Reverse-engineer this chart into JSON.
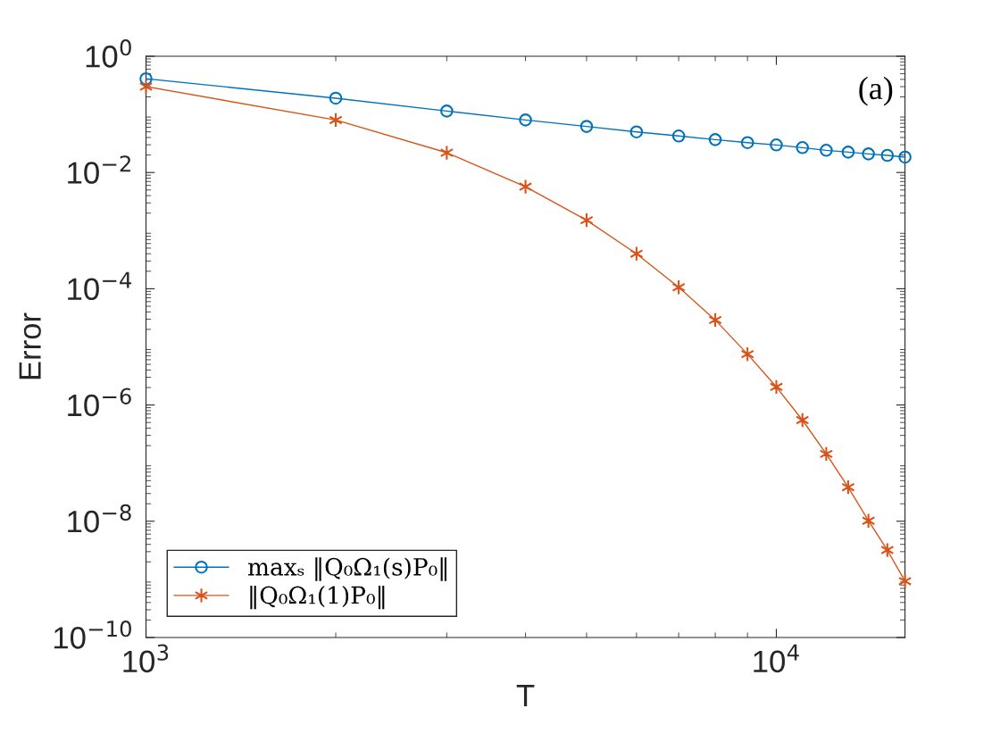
{
  "chart_data": {
    "type": "line",
    "xlabel": "T",
    "ylabel": "Error",
    "log": "xy",
    "x": [
      1000,
      2000,
      3000,
      4000,
      5000,
      6000,
      7000,
      8000,
      9000,
      10000,
      11000,
      12000,
      13000,
      14000,
      15000,
      16000
    ],
    "series": [
      {
        "name": "maxₛ ‖Q₀Ω₁(s)P₀‖",
        "color": "#0072bd",
        "marker": "circle",
        "values": [
          0.41,
          0.19,
          0.114,
          0.08,
          0.062,
          0.05,
          0.0425,
          0.0368,
          0.0327,
          0.0298,
          0.0268,
          0.0241,
          0.0224,
          0.0209,
          0.0197,
          0.0184
        ]
      },
      {
        "name": "‖Q₀Ω₁(1)P₀‖",
        "color": "#d95319",
        "marker": "cross",
        "values": [
          0.3,
          0.08,
          0.0219,
          0.0057,
          0.00151,
          0.0004,
          0.000106,
          2.9e-05,
          7.5e-06,
          2.05e-06,
          5.5e-07,
          1.44e-07,
          3.85e-08,
          1.02e-08,
          3.2e-09,
          9.3e-10
        ]
      }
    ],
    "xlim": [
      1000,
      16000
    ],
    "xticks": [
      {
        "value": 1000,
        "label": "10$^{3}$"
      },
      {
        "value": 10000,
        "label": "10$^{4}$"
      }
    ],
    "ylim": [
      1e-10,
      1
    ],
    "yticks": [
      {
        "value": 1e-10,
        "label": "10$^{−10}$"
      },
      {
        "value": 1e-08,
        "label": "10$^{−8}$"
      },
      {
        "value": 1e-06,
        "label": "10$^{−6}$"
      },
      {
        "value": 0.0001,
        "label": "10$^{−4}$"
      },
      {
        "value": 0.01,
        "label": "10$^{−2}$"
      },
      {
        "value": 1,
        "label": "10$^{0}$"
      }
    ],
    "grid": false,
    "legend": "bottom left",
    "line_style": "solid",
    "annotations": [
      "(a)"
    ]
  }
}
